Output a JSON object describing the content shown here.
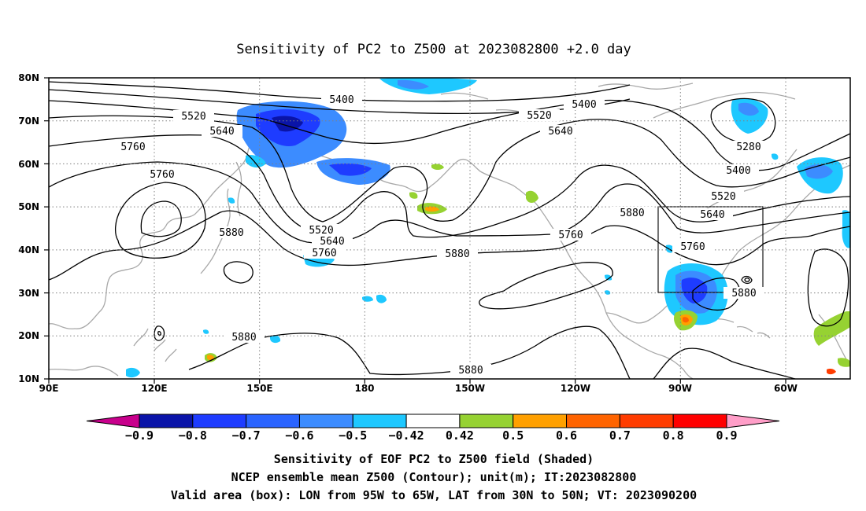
{
  "title": "Sensitivity of PC2 to Z500 at 2023082800 +2.0 day",
  "axes": {
    "lat_labels": [
      "80N",
      "70N",
      "60N",
      "50N",
      "40N",
      "30N",
      "20N",
      "10N"
    ],
    "lon_labels": [
      "90E",
      "120E",
      "150E",
      "180",
      "150W",
      "120W",
      "90W",
      "60W"
    ]
  },
  "contour_labels": [
    "5400",
    "5520",
    "5640",
    "5760",
    "5760",
    "5880",
    "5520",
    "5640",
    "5760",
    "5880",
    "5880",
    "5400",
    "5520",
    "5640",
    "5760",
    "5880",
    "5280",
    "5400",
    "5520",
    "5640",
    "5760",
    "5880",
    "5880"
  ],
  "colorbar": {
    "labels": [
      "-0.9",
      "-0.8",
      "-0.7",
      "-0.6",
      "-0.5",
      "-0.42",
      "0.42",
      "0.5",
      "0.6",
      "0.7",
      "0.8",
      "0.9"
    ],
    "colors": [
      "#c8008c",
      "#0a14a8",
      "#1e3cff",
      "#2a64ff",
      "#3c8cff",
      "#1ec8ff",
      "#ffffff",
      "#96d232",
      "#ffa000",
      "#ff6400",
      "#ff3c00",
      "#ff0000",
      "#ff9ec8"
    ]
  },
  "caption": {
    "line1": "Sensitivity of EOF PC2 to Z500 field (Shaded)",
    "line2": "NCEP ensemble mean Z500 (Contour); unit(m); IT:2023082800",
    "line3": "Valid area (box): LON from 95W to 65W, LAT from 30N to 50N; VT: 2023090200"
  }
}
